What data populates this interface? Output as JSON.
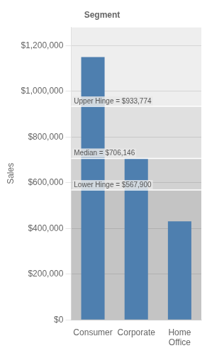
{
  "chart_data": {
    "type": "bar",
    "title": "Segment",
    "y_label": "Sales",
    "categories": [
      "Consumer",
      "Corporate",
      "Home\nOffice"
    ],
    "values": [
      1149747,
      706146,
      430678
    ],
    "color": "#4e7faf",
    "ylim": [
      0,
      1280000
    ],
    "yticks": [
      {
        "value": 0,
        "label": "$0"
      },
      {
        "value": 200000,
        "label": "$200,000"
      },
      {
        "value": 400000,
        "label": "$400,000"
      },
      {
        "value": 600000,
        "label": "$600,000"
      },
      {
        "value": 800000,
        "label": "$800,000"
      },
      {
        "value": 1000000,
        "label": "$1,000,000"
      },
      {
        "value": 1200000,
        "label": "$1,200,000"
      }
    ],
    "annotations": [
      {
        "text": "Upper Hinge = $933,774",
        "y": 933774
      },
      {
        "text": "Median = $706,146",
        "y": 706146
      },
      {
        "text": "Lower Hinge = $567,900",
        "y": 567900
      }
    ],
    "grid": true
  }
}
